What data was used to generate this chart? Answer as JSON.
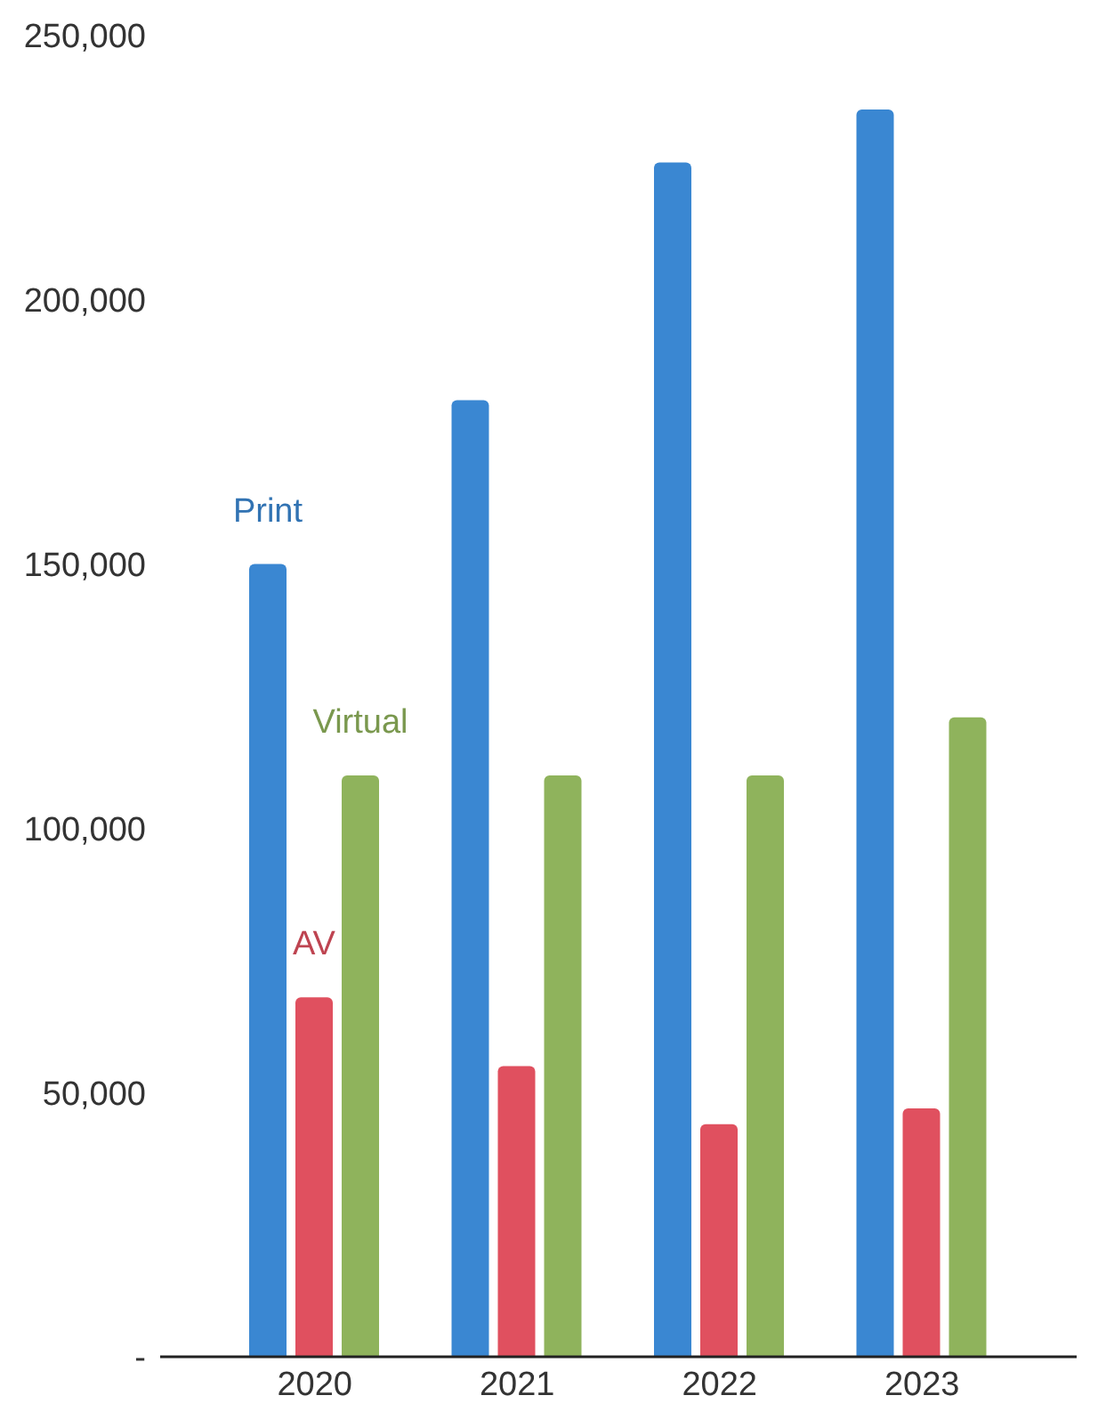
{
  "chart_data": {
    "type": "bar",
    "categories": [
      "2020",
      "2021",
      "2022",
      "2023"
    ],
    "series": [
      {
        "name": "Print",
        "color": "#3a87d2",
        "values": [
          150000,
          181000,
          226000,
          236000
        ]
      },
      {
        "name": "AV",
        "color": "#e0505f",
        "values": [
          68000,
          55000,
          44000,
          47000
        ]
      },
      {
        "name": "Virtual",
        "color": "#8fb35c",
        "values": [
          110000,
          110000,
          110000,
          121000
        ]
      }
    ],
    "ylim": [
      0,
      250000
    ],
    "yticks": [
      {
        "value": 0,
        "label": "-"
      },
      {
        "value": 50000,
        "label": "50,000"
      },
      {
        "value": 100000,
        "label": "100,000"
      },
      {
        "value": 150000,
        "label": "150,000"
      },
      {
        "value": 200000,
        "label": "200,000"
      },
      {
        "value": 250000,
        "label": "250,000"
      }
    ],
    "grid": false,
    "legend": false
  }
}
